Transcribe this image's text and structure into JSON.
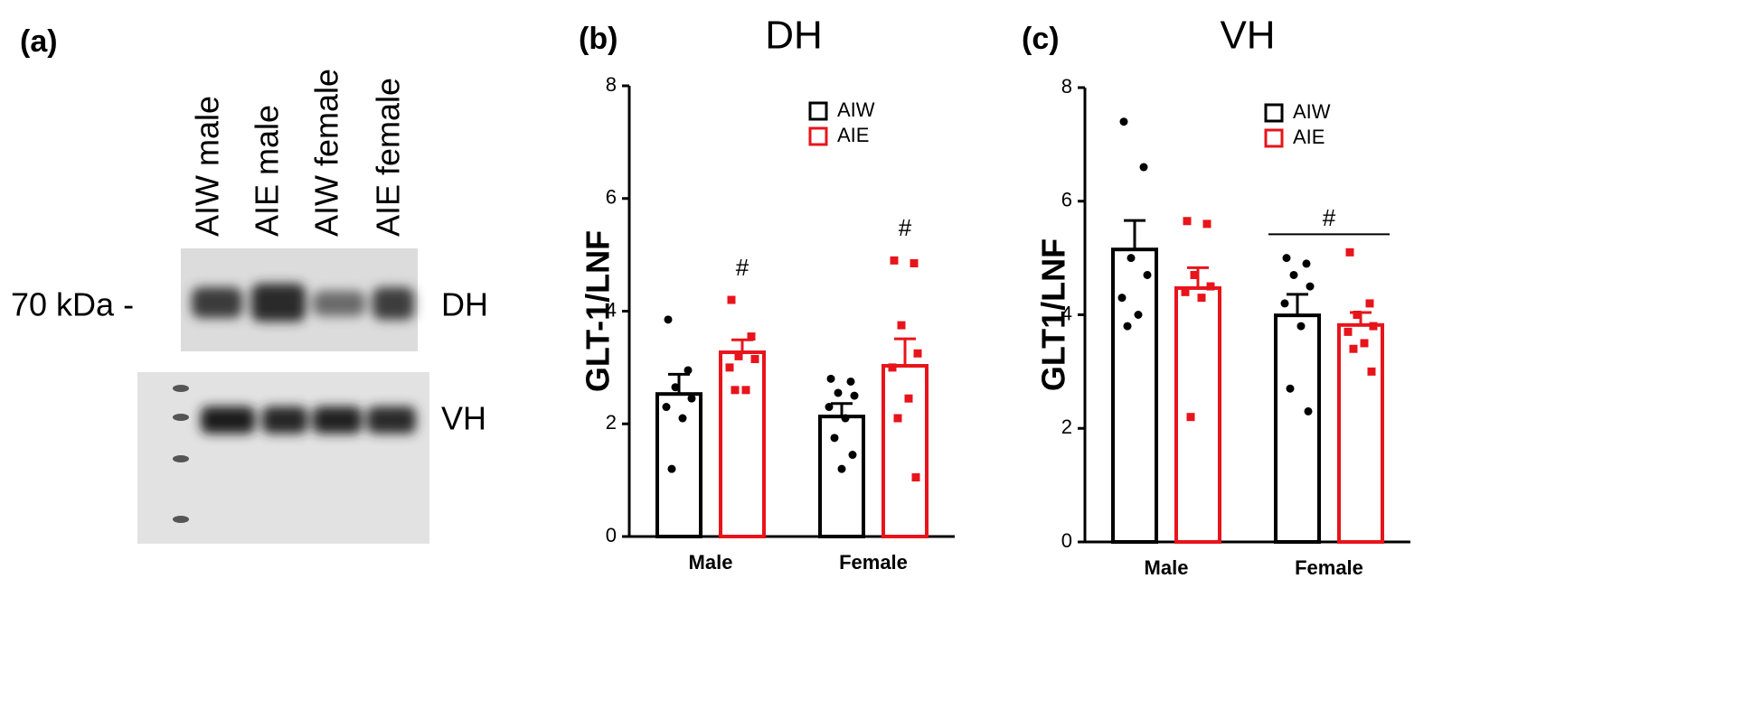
{
  "blot": {
    "panel_label": "(a)",
    "lanes": [
      "AIW male",
      "AIE male",
      "AIW female",
      "AIE female"
    ],
    "marker": "70 kDa -",
    "rows": [
      "DH",
      "VH"
    ]
  },
  "chart_data": [
    {
      "type": "bar",
      "panel_label": "(b)",
      "title": "DH",
      "ylabel": "GLT-1/LNF",
      "categories": [
        "Male",
        "Female"
      ],
      "series": [
        {
          "name": "AIW",
          "color": "#000000",
          "values": [
            2.53,
            2.13
          ],
          "errors": [
            0.35,
            0.23
          ],
          "points": [
            [
              3.85,
              2.95,
              2.65,
              2.45,
              2.3,
              2.1,
              1.2
            ],
            [
              2.8,
              2.75,
              2.55,
              2.5,
              2.3,
              2.1,
              1.75,
              1.45,
              1.2
            ]
          ]
        },
        {
          "name": "AIE",
          "color": "#e8141b",
          "values": [
            3.27,
            3.03
          ],
          "errors": [
            0.22,
            0.48
          ],
          "points": [
            [
              4.2,
              3.55,
              3.2,
              3.15,
              3.0,
              2.6,
              2.6
            ],
            [
              4.9,
              4.85,
              3.75,
              3.25,
              3.0,
              2.45,
              2.1,
              1.05
            ]
          ]
        }
      ],
      "annotations": [
        {
          "text": "#",
          "category": 0,
          "series": 1
        },
        {
          "text": "#",
          "category": 1,
          "series": 1
        }
      ],
      "ylim": [
        0,
        8
      ],
      "yticks": [
        0,
        2,
        4,
        6,
        8
      ],
      "legend": "upper right"
    },
    {
      "type": "bar",
      "panel_label": "(c)",
      "title": "VH",
      "ylabel": "GLT1/LNF",
      "categories": [
        "Male",
        "Female"
      ],
      "series": [
        {
          "name": "AIW",
          "color": "#000000",
          "values": [
            5.15,
            3.99
          ],
          "errors": [
            0.51,
            0.37
          ],
          "points": [
            [
              7.4,
              6.6,
              5.0,
              4.7,
              4.3,
              4.0,
              3.8
            ],
            [
              5.0,
              4.9,
              4.7,
              4.5,
              4.2,
              3.8,
              2.7,
              2.3
            ]
          ]
        },
        {
          "name": "AIE",
          "color": "#e8141b",
          "values": [
            4.47,
            3.82
          ],
          "errors": [
            0.36,
            0.22
          ],
          "points": [
            [
              5.65,
              5.6,
              4.7,
              4.5,
              4.4,
              4.3,
              2.2
            ],
            [
              5.1,
              4.2,
              4.0,
              3.8,
              3.7,
              3.5,
              3.4,
              3.0
            ]
          ]
        }
      ],
      "annotations": [
        {
          "text": "#",
          "category": 1,
          "bracket": true
        }
      ],
      "ylim": [
        0,
        8
      ],
      "yticks": [
        0,
        2,
        4,
        6,
        8
      ],
      "legend": "upper right"
    }
  ]
}
